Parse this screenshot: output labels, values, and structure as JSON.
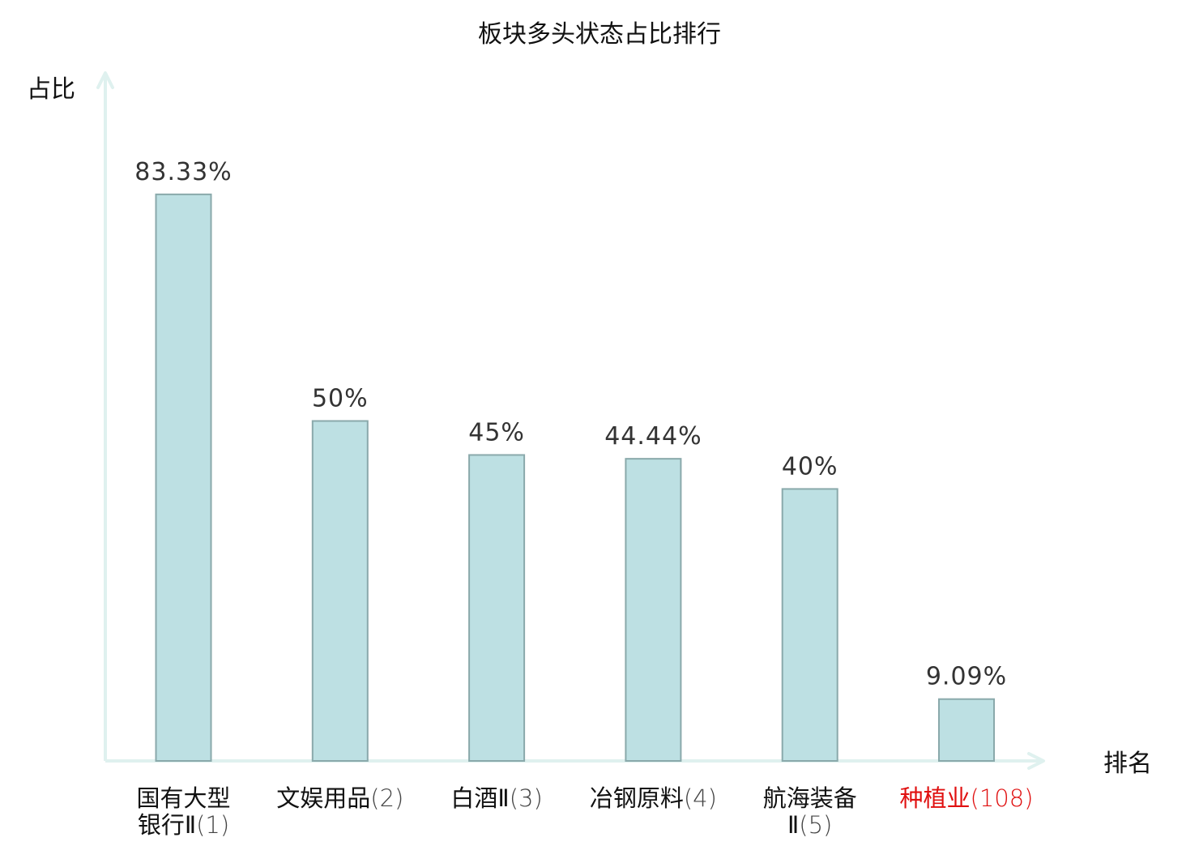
{
  "chart_data": {
    "type": "bar",
    "title": "板块多头状态占比排行",
    "xlabel": "排名",
    "ylabel": "占比",
    "ylim": [
      0,
      100
    ],
    "grid": false,
    "categories": [
      {
        "name_lines": [
          "国有大型",
          "银行Ⅱ"
        ],
        "rank": "(1)",
        "highlight": false
      },
      {
        "name_lines": [
          "文娱用品"
        ],
        "rank": "(2)",
        "highlight": false
      },
      {
        "name_lines": [
          "白酒Ⅱ"
        ],
        "rank": "(3)",
        "highlight": false
      },
      {
        "name_lines": [
          "冶钢原料"
        ],
        "rank": "(4)",
        "highlight": false
      },
      {
        "name_lines": [
          "航海装备",
          "Ⅱ"
        ],
        "rank": "(5)",
        "highlight": false
      },
      {
        "name_lines": [
          "种植业"
        ],
        "rank": "(108)",
        "highlight": true
      }
    ],
    "values": [
      83.33,
      50,
      45,
      44.44,
      40,
      9.09
    ],
    "value_labels": [
      "83.33%",
      "50%",
      "45%",
      "44.44%",
      "40%",
      "9.09%"
    ],
    "colors": {
      "bar_fill": "#bde0e3",
      "bar_stroke": "#8aa9ab",
      "axis": "#dff1ef",
      "label_text": "#333333",
      "tick_text": "#111111",
      "highlight_text": "#e01010"
    }
  }
}
